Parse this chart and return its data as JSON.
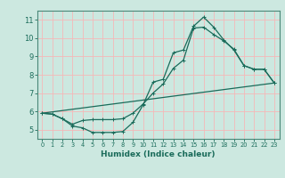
{
  "xlabel": "Humidex (Indice chaleur)",
  "background_color": "#cce8e0",
  "grid_color": "#f5b8b8",
  "line_color": "#1a6b5a",
  "xlim": [
    -0.5,
    23.5
  ],
  "ylim": [
    4.5,
    11.5
  ],
  "xticks": [
    0,
    1,
    2,
    3,
    4,
    5,
    6,
    7,
    8,
    9,
    10,
    11,
    12,
    13,
    14,
    15,
    16,
    17,
    18,
    19,
    20,
    21,
    22,
    23
  ],
  "yticks": [
    5,
    6,
    7,
    8,
    9,
    10,
    11
  ],
  "line1_x": [
    0,
    1,
    2,
    3,
    4,
    5,
    6,
    7,
    8,
    9,
    10,
    11,
    12,
    13,
    14,
    15,
    16,
    17,
    18,
    19,
    20,
    21,
    22,
    23
  ],
  "line1_y": [
    5.9,
    5.85,
    5.6,
    5.2,
    5.1,
    4.85,
    4.85,
    4.85,
    4.9,
    5.4,
    6.35,
    7.6,
    7.75,
    9.2,
    9.35,
    10.65,
    11.15,
    10.6,
    9.9,
    9.35,
    8.5,
    8.3,
    8.3,
    7.55
  ],
  "line2_x": [
    0,
    1,
    2,
    3,
    4,
    5,
    6,
    7,
    8,
    9,
    10,
    11,
    12,
    13,
    14,
    15,
    16,
    17,
    18,
    19,
    20,
    21,
    22,
    23
  ],
  "line2_y": [
    5.9,
    5.85,
    5.6,
    5.3,
    5.5,
    5.55,
    5.55,
    5.55,
    5.6,
    5.9,
    6.4,
    7.0,
    7.5,
    8.35,
    8.8,
    10.55,
    10.6,
    10.2,
    9.85,
    9.4,
    8.5,
    8.3,
    8.3,
    7.55
  ],
  "line3_x": [
    0,
    23
  ],
  "line3_y": [
    5.9,
    7.55
  ],
  "xlabel_fontsize": 6.5,
  "tick_fontsize_x": 4.8,
  "tick_fontsize_y": 6.0
}
